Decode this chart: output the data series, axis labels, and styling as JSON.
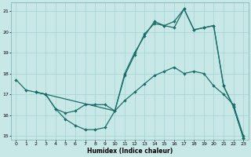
{
  "xlabel": "Humidex (Indice chaleur)",
  "xlim": [
    -0.5,
    23.5
  ],
  "ylim": [
    14.8,
    21.4
  ],
  "yticks": [
    15,
    16,
    17,
    18,
    19,
    20,
    21
  ],
  "xticks": [
    0,
    1,
    2,
    3,
    4,
    5,
    6,
    7,
    8,
    9,
    10,
    11,
    12,
    13,
    14,
    15,
    16,
    17,
    18,
    19,
    20,
    21,
    22,
    23
  ],
  "bg_color": "#c8e8e8",
  "line_color": "#1a6e6a",
  "grid_color": "#aad4d4",
  "line1_x": [
    0,
    1,
    2,
    3,
    4,
    5,
    6,
    7,
    8,
    9,
    10,
    11,
    12,
    13,
    14,
    15,
    16,
    17,
    18,
    19,
    20,
    21,
    22,
    23
  ],
  "line1_y": [
    17.7,
    17.2,
    17.1,
    17.0,
    16.3,
    15.8,
    15.5,
    15.3,
    15.3,
    15.4,
    16.2,
    17.9,
    18.9,
    19.9,
    20.4,
    20.3,
    20.2,
    21.1,
    20.1,
    20.2,
    20.3,
    17.4,
    16.4,
    14.9
  ],
  "line2_x": [
    2,
    3,
    4,
    5,
    6,
    7,
    8,
    9,
    10,
    11,
    12,
    13,
    14,
    15,
    16,
    17,
    18,
    19,
    20,
    21,
    22,
    23
  ],
  "line2_y": [
    17.1,
    17.0,
    16.3,
    16.1,
    16.2,
    16.5,
    16.5,
    16.5,
    16.2,
    16.7,
    17.1,
    17.5,
    17.9,
    18.1,
    18.3,
    18.0,
    18.1,
    18.0,
    17.4,
    17.0,
    16.5,
    15.0
  ],
  "line3_x": [
    2,
    3,
    10,
    11,
    12,
    13,
    14,
    15,
    16,
    17,
    18,
    19,
    20,
    21,
    22,
    23
  ],
  "line3_y": [
    17.1,
    17.0,
    16.2,
    18.0,
    19.0,
    19.8,
    20.5,
    20.3,
    20.5,
    21.1,
    20.1,
    20.2,
    20.3,
    17.4,
    16.4,
    14.9
  ]
}
